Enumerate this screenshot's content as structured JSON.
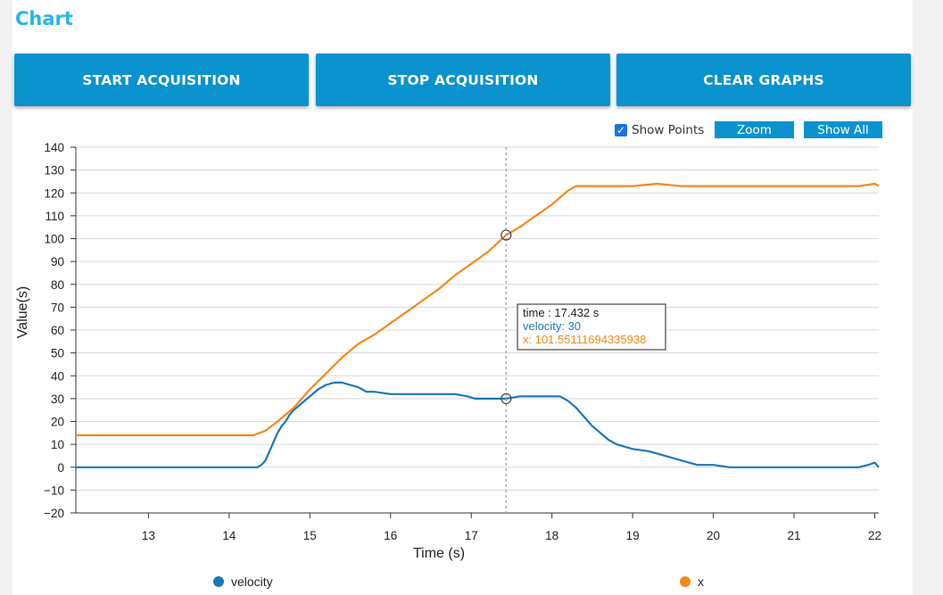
{
  "header": {
    "title": "Chart"
  },
  "toolbar": {
    "start_label": "START ACQUISITION",
    "stop_label": "STOP ACQUISITION",
    "clear_label": "CLEAR GRAPHS"
  },
  "controls": {
    "show_points_label": "Show Points",
    "show_points_checked": true,
    "zoom_label": "Zoom",
    "show_all_label": "Show All"
  },
  "tooltip": {
    "time_text": "time : 17.432 s",
    "velocity_text": "velocity: 30",
    "x_text": "x: 101.55111694335938",
    "time": 17.432,
    "velocity": 30,
    "x": 101.55111694335938
  },
  "chart_data": {
    "type": "line",
    "xlabel": "Time (s)",
    "ylabel": "Value(s)",
    "xlim": [
      12.1,
      22.05
    ],
    "ylim": [
      -20,
      140
    ],
    "x_ticks": [
      13,
      14,
      15,
      16,
      17,
      18,
      19,
      20,
      21,
      22
    ],
    "y_ticks": [
      -20,
      -10,
      0,
      10,
      20,
      30,
      40,
      50,
      60,
      70,
      80,
      90,
      100,
      110,
      120,
      130,
      140
    ],
    "grid": "horizontal",
    "legend_position": "bottom",
    "series": [
      {
        "name": "velocity",
        "color": "#1f77b4",
        "points": [
          [
            12.1,
            0
          ],
          [
            14.35,
            0
          ],
          [
            14.4,
            1
          ],
          [
            14.45,
            3
          ],
          [
            14.5,
            7
          ],
          [
            14.55,
            11
          ],
          [
            14.6,
            15
          ],
          [
            14.65,
            18
          ],
          [
            14.7,
            20
          ],
          [
            14.75,
            23
          ],
          [
            14.8,
            25
          ],
          [
            14.9,
            28
          ],
          [
            15.0,
            31
          ],
          [
            15.1,
            34
          ],
          [
            15.2,
            36
          ],
          [
            15.3,
            37
          ],
          [
            15.4,
            37
          ],
          [
            15.5,
            36
          ],
          [
            15.6,
            35
          ],
          [
            15.7,
            33
          ],
          [
            15.8,
            33
          ],
          [
            16.0,
            32
          ],
          [
            16.2,
            32
          ],
          [
            16.4,
            32
          ],
          [
            16.6,
            32
          ],
          [
            16.8,
            32
          ],
          [
            16.95,
            31
          ],
          [
            17.05,
            30
          ],
          [
            17.2,
            30
          ],
          [
            17.432,
            30
          ],
          [
            17.6,
            31
          ],
          [
            17.8,
            31
          ],
          [
            18.0,
            31
          ],
          [
            18.1,
            31
          ],
          [
            18.2,
            29
          ],
          [
            18.3,
            26
          ],
          [
            18.4,
            22
          ],
          [
            18.5,
            18
          ],
          [
            18.6,
            15
          ],
          [
            18.7,
            12
          ],
          [
            18.8,
            10
          ],
          [
            18.9,
            9
          ],
          [
            19.0,
            8
          ],
          [
            19.2,
            7
          ],
          [
            19.4,
            5
          ],
          [
            19.6,
            3
          ],
          [
            19.8,
            1
          ],
          [
            20.0,
            1
          ],
          [
            20.2,
            0
          ],
          [
            21.0,
            0
          ],
          [
            21.8,
            0
          ],
          [
            21.92,
            1
          ],
          [
            22.0,
            2
          ],
          [
            22.05,
            0
          ]
        ]
      },
      {
        "name": "x",
        "color": "#f28a1e",
        "points": [
          [
            12.1,
            14
          ],
          [
            14.3,
            14
          ],
          [
            14.45,
            16
          ],
          [
            14.6,
            20
          ],
          [
            14.8,
            26
          ],
          [
            15.0,
            34
          ],
          [
            15.2,
            41
          ],
          [
            15.4,
            48
          ],
          [
            15.6,
            54
          ],
          [
            15.8,
            58
          ],
          [
            16.0,
            63
          ],
          [
            16.2,
            68
          ],
          [
            16.4,
            73
          ],
          [
            16.6,
            78
          ],
          [
            16.8,
            84
          ],
          [
            17.0,
            89
          ],
          [
            17.2,
            94
          ],
          [
            17.432,
            101.55
          ],
          [
            17.6,
            105
          ],
          [
            17.8,
            110
          ],
          [
            18.0,
            115
          ],
          [
            18.2,
            121
          ],
          [
            18.3,
            123
          ],
          [
            18.5,
            123
          ],
          [
            19.0,
            123
          ],
          [
            19.3,
            124
          ],
          [
            19.6,
            123
          ],
          [
            20.0,
            123
          ],
          [
            20.5,
            123
          ],
          [
            21.0,
            123
          ],
          [
            21.5,
            123
          ],
          [
            21.8,
            123
          ],
          [
            22.0,
            124
          ],
          [
            22.05,
            123
          ]
        ]
      }
    ],
    "crosshair_x": 17.432
  }
}
